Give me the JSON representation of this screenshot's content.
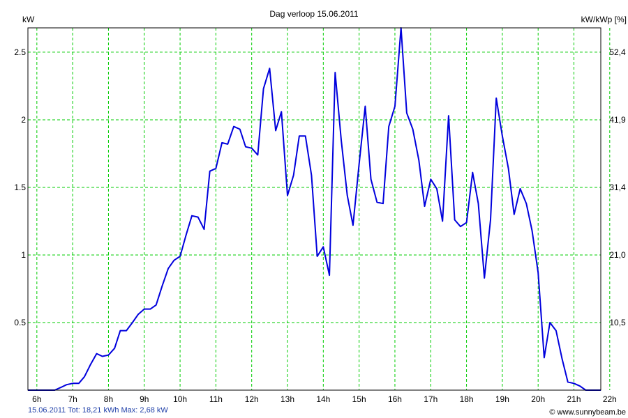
{
  "chart_data": {
    "type": "line",
    "title": "Dag  verloop 15.06.2011",
    "ylabel_left": "kW",
    "ylabel_right": "kW/kWp [%]",
    "x_ticks": [
      "6h",
      "7h",
      "8h",
      "9h",
      "10h",
      "11h",
      "12h",
      "13h",
      "14h",
      "15h",
      "16h",
      "17h",
      "18h",
      "19h",
      "20h",
      "21h",
      "22h"
    ],
    "x_range": [
      5.75,
      21.75
    ],
    "ylim": [
      0,
      2.68
    ],
    "y_ticks": [
      {
        "value": 0.5,
        "label": "0.5"
      },
      {
        "value": 1,
        "label": "1"
      },
      {
        "value": 1.5,
        "label": "1.5"
      },
      {
        "value": 2,
        "label": "2"
      },
      {
        "value": 2.5,
        "label": "2.5"
      }
    ],
    "y2_ticks": [
      {
        "value": 0.5,
        "label": "10,5"
      },
      {
        "value": 1,
        "label": "21,0"
      },
      {
        "value": 1.5,
        "label": "31,4"
      },
      {
        "value": 2,
        "label": "41,9"
      },
      {
        "value": 2.5,
        "label": "52,4"
      }
    ],
    "grid": true,
    "series": [
      {
        "color": "#0000dd",
        "x": [
          5.75,
          6.5,
          6.67,
          6.83,
          7.0,
          7.17,
          7.33,
          7.5,
          7.67,
          7.83,
          8.0,
          8.17,
          8.33,
          8.5,
          8.67,
          8.83,
          9.0,
          9.17,
          9.33,
          9.5,
          9.67,
          9.83,
          10.0,
          10.17,
          10.33,
          10.5,
          10.67,
          10.83,
          11.0,
          11.17,
          11.33,
          11.5,
          11.67,
          11.83,
          12.0,
          12.17,
          12.33,
          12.5,
          12.67,
          12.83,
          13.0,
          13.17,
          13.33,
          13.5,
          13.67,
          13.83,
          14.0,
          14.17,
          14.33,
          14.5,
          14.67,
          14.83,
          15.0,
          15.17,
          15.33,
          15.5,
          15.67,
          15.83,
          16.0,
          16.17,
          16.33,
          16.5,
          16.67,
          16.83,
          17.0,
          17.17,
          17.33,
          17.5,
          17.67,
          17.83,
          18.0,
          18.17,
          18.33,
          18.5,
          18.67,
          18.83,
          19.0,
          19.17,
          19.33,
          19.5,
          19.67,
          19.83,
          20.0,
          20.17,
          20.33,
          20.5,
          20.67,
          20.83,
          21.0,
          21.17,
          21.33,
          21.5,
          21.75
        ],
        "y": [
          0,
          0,
          0.02,
          0.04,
          0.05,
          0.05,
          0.1,
          0.19,
          0.27,
          0.25,
          0.26,
          0.31,
          0.44,
          0.44,
          0.5,
          0.56,
          0.6,
          0.6,
          0.63,
          0.77,
          0.9,
          0.96,
          0.99,
          1.15,
          1.29,
          1.28,
          1.19,
          1.62,
          1.64,
          1.83,
          1.82,
          1.95,
          1.93,
          1.8,
          1.79,
          1.74,
          2.23,
          2.38,
          1.92,
          2.06,
          1.44,
          1.59,
          1.88,
          1.88,
          1.59,
          0.99,
          1.06,
          0.85,
          2.35,
          1.85,
          1.44,
          1.22,
          1.67,
          2.1,
          1.56,
          1.39,
          1.38,
          1.95,
          2.1,
          2.68,
          2.05,
          1.93,
          1.7,
          1.36,
          1.56,
          1.49,
          1.25,
          2.03,
          1.26,
          1.21,
          1.24,
          1.61,
          1.38,
          0.83,
          1.26,
          2.16,
          1.88,
          1.64,
          1.3,
          1.49,
          1.38,
          1.18,
          0.87,
          0.24,
          0.5,
          0.44,
          0.23,
          0.06,
          0.05,
          0.03,
          0,
          0,
          0
        ]
      }
    ]
  },
  "footer": {
    "left": "15.06.2011 Tot: 18,21 kWh Max: 2,68 kW",
    "right": "© www.sunnybeam.be"
  }
}
